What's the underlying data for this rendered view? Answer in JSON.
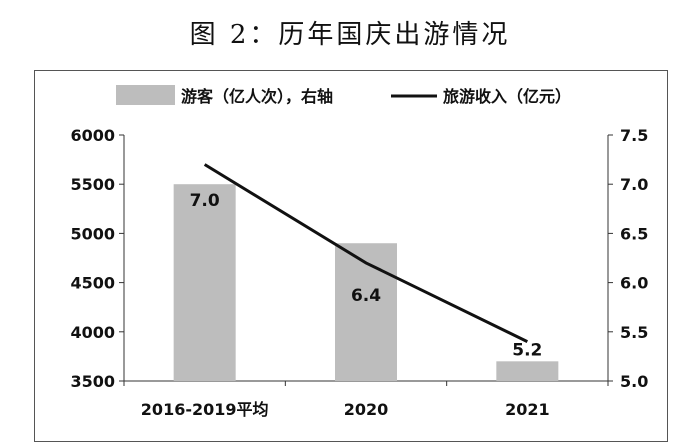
{
  "title": "图 2：历年国庆出游情况",
  "chart_data": {
    "type": "bar+line",
    "categories": [
      "2016-2019平均",
      "2020",
      "2021"
    ],
    "series": [
      {
        "name": "游客（亿人次），右轴",
        "type": "bar",
        "axis": "right",
        "values": [
          7.0,
          6.4,
          5.2
        ],
        "color": "#bdbdbd"
      },
      {
        "name": "旅游收入（亿元）",
        "type": "line",
        "axis": "left",
        "values": [
          5700,
          4700,
          3900
        ],
        "color": "#111111"
      }
    ],
    "left_axis": {
      "min": 3500,
      "max": 6000,
      "ticks": [
        3500,
        4000,
        4500,
        5000,
        5500,
        6000
      ]
    },
    "right_axis": {
      "min": 5.0,
      "max": 7.5,
      "ticks": [
        "5.0",
        "5.5",
        "6.0",
        "6.5",
        "7.0",
        "7.5"
      ]
    },
    "data_labels": [
      "7.0",
      "6.4",
      "5.2"
    ],
    "legend_position": "top",
    "grid": false
  }
}
